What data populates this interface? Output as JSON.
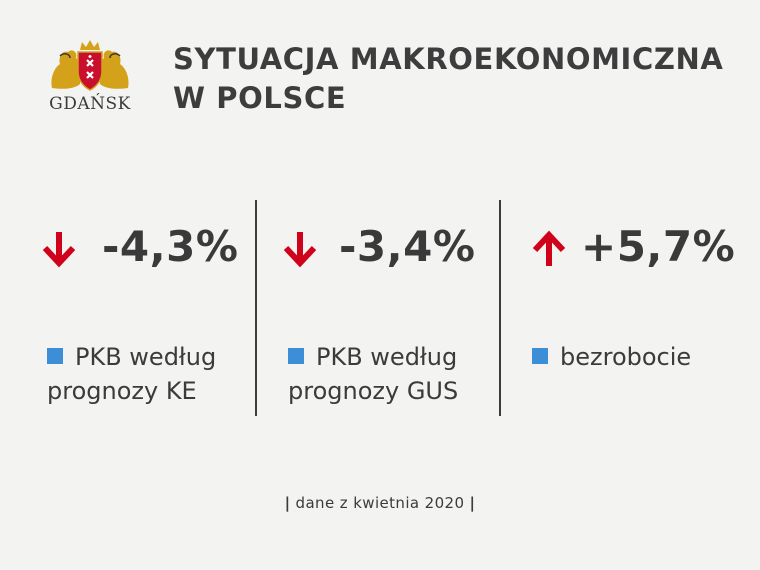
{
  "logo": {
    "text": "GDAŃSK"
  },
  "title": {
    "line1": "SYTUACJA MAKROEKONOMICZNA",
    "line2": "W POLSCE"
  },
  "stats": [
    {
      "value": "-4,3%",
      "direction": "down",
      "label_line1": "PKB według",
      "label_line2": "prognozy KE"
    },
    {
      "value": "-3,4%",
      "direction": "down",
      "label_line1": "PKB według",
      "label_line2": "prognozy GUS"
    },
    {
      "value": "+5,7%",
      "direction": "up",
      "label_line1": "bezrobocie",
      "label_line2": ""
    }
  ],
  "footer": {
    "text": "dane z kwietnia 2020"
  },
  "colors": {
    "arrow": "#d0021b",
    "legend": "#3c8fd6",
    "text": "#3b3b3b",
    "background": "#f3f3f1"
  }
}
